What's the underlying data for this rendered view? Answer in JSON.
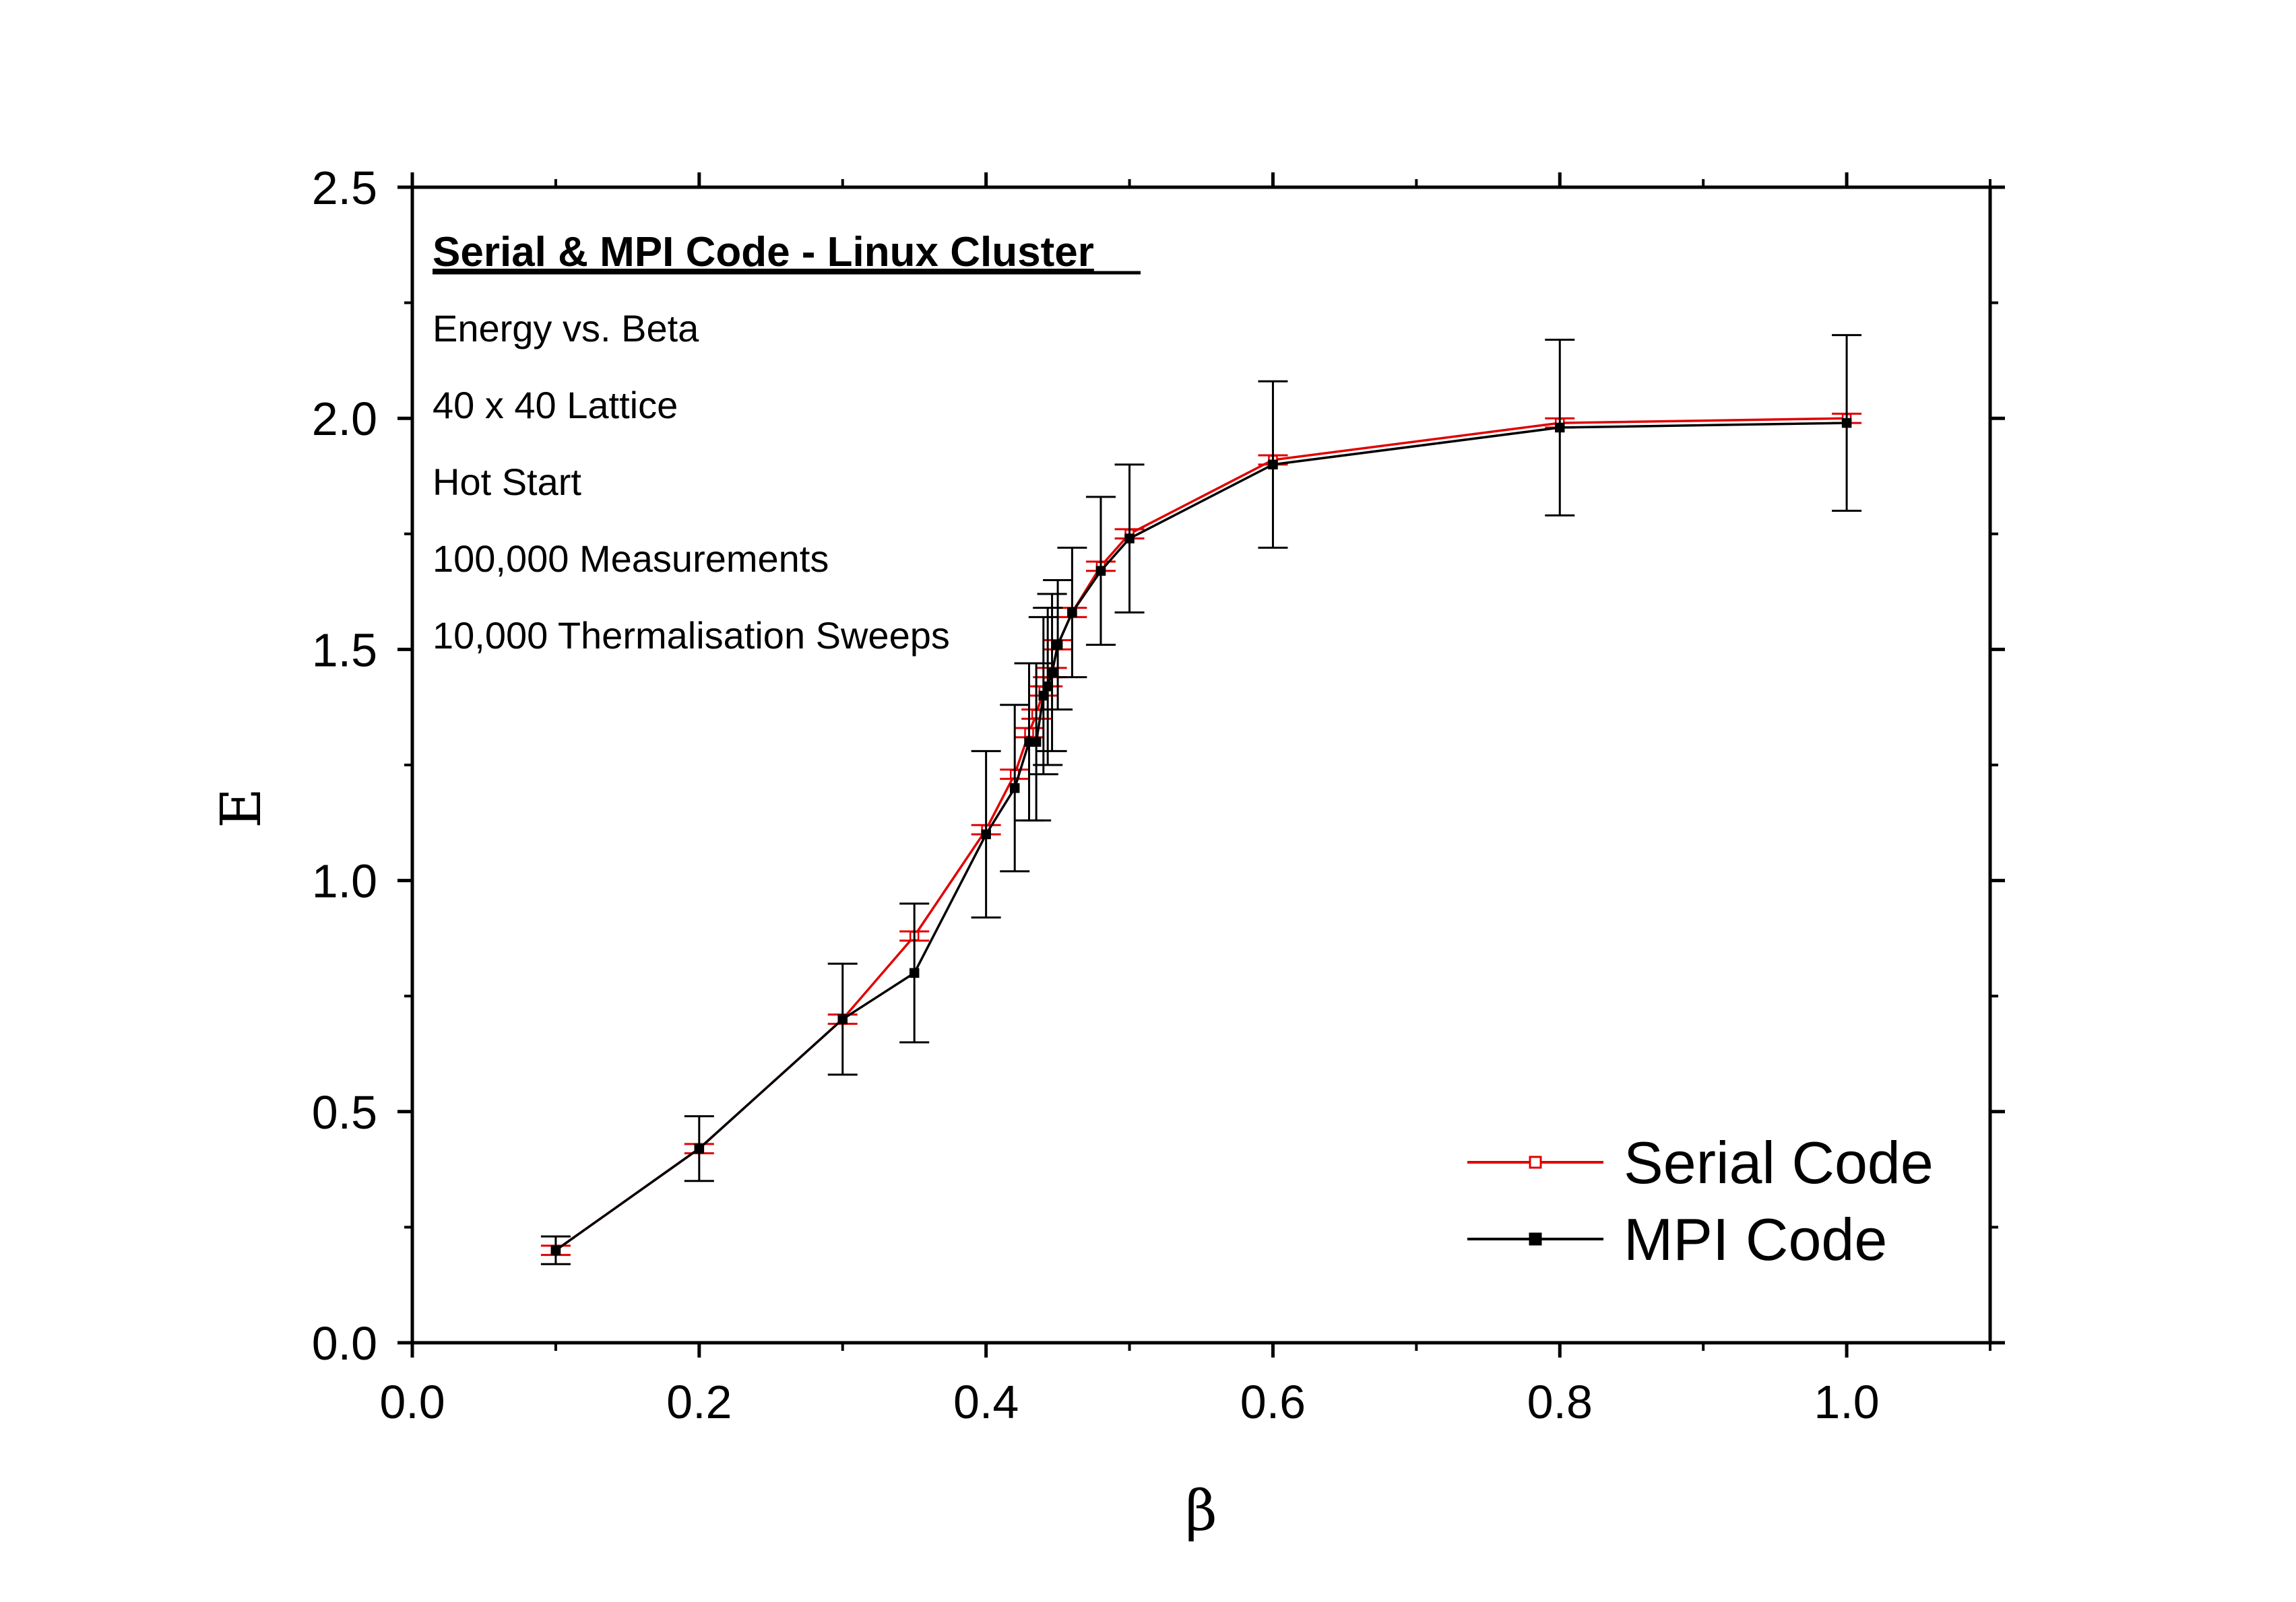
{
  "chart_data": {
    "type": "line",
    "xlabel": "β",
    "ylabel": "E",
    "xlim": [
      0.0,
      1.1
    ],
    "ylim": [
      0.0,
      2.5
    ],
    "x_ticks": [
      "0.0",
      "0.2",
      "0.4",
      "0.6",
      "0.8",
      "1.0"
    ],
    "y_ticks": [
      "0.0",
      "0.5",
      "1.0",
      "1.5",
      "2.0",
      "2.5"
    ],
    "grid": false,
    "legend_position": "bottom-right",
    "annotations": {
      "title": "Serial & MPI Code - Linux Cluster",
      "lines": [
        "Energy vs. Beta",
        "40 x 40 Lattice",
        "Hot Start",
        "100,000 Measurements",
        "10,000 Thermalisation Sweeps"
      ]
    },
    "series": [
      {
        "name": "Serial Code",
        "color": "#e00000",
        "x": [
          0.1,
          0.2,
          0.3,
          0.35,
          0.4,
          0.42,
          0.43,
          0.435,
          0.44,
          0.443,
          0.446,
          0.45,
          0.46,
          0.48,
          0.5,
          0.6,
          0.8,
          1.0
        ],
        "y": [
          0.2,
          0.42,
          0.7,
          0.88,
          1.11,
          1.23,
          1.32,
          1.36,
          1.41,
          1.43,
          1.45,
          1.51,
          1.58,
          1.68,
          1.75,
          1.91,
          1.99,
          2.0
        ],
        "err": [
          0.01,
          0.01,
          0.01,
          0.01,
          0.01,
          0.01,
          0.01,
          0.01,
          0.01,
          0.01,
          0.01,
          0.01,
          0.01,
          0.01,
          0.01,
          0.01,
          0.01,
          0.01
        ]
      },
      {
        "name": "MPI Code",
        "color": "#000000",
        "x": [
          0.1,
          0.2,
          0.3,
          0.35,
          0.4,
          0.42,
          0.43,
          0.435,
          0.44,
          0.443,
          0.446,
          0.45,
          0.46,
          0.48,
          0.5,
          0.6,
          0.8,
          1.0
        ],
        "y": [
          0.2,
          0.42,
          0.7,
          0.8,
          1.1,
          1.2,
          1.3,
          1.3,
          1.4,
          1.42,
          1.45,
          1.51,
          1.58,
          1.67,
          1.74,
          1.9,
          1.98,
          1.99
        ],
        "err": [
          0.03,
          0.07,
          0.12,
          0.15,
          0.18,
          0.18,
          0.17,
          0.17,
          0.17,
          0.17,
          0.17,
          0.14,
          0.14,
          0.16,
          0.16,
          0.18,
          0.19,
          0.19
        ]
      }
    ]
  }
}
